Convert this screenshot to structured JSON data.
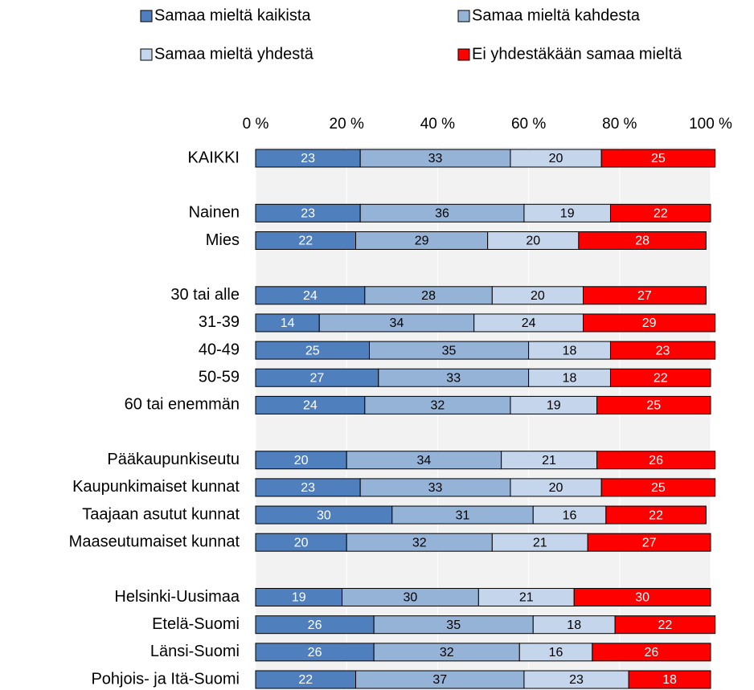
{
  "chart_data": {
    "type": "stacked_barh",
    "categories": [
      "KAIKKI",
      null,
      "Nainen",
      "Mies",
      null,
      "30 tai alle",
      "31-39",
      "40-49",
      "50-59",
      "60 tai enemmän",
      null,
      "Pääkaupunkiseutu",
      "Kaupunkimaiset kunnat",
      "Taajaan asutut kunnat",
      "Maaseutumaiset kunnat",
      null,
      "Helsinki-Uusimaa",
      "Etelä-Suomi",
      "Länsi-Suomi",
      "Pohjois- ja Itä-Suomi"
    ],
    "series": [
      {
        "name": "Samaa mieltä kaikista",
        "color": "#4f7fbd",
        "label_color": "#ffffff",
        "values": [
          23,
          null,
          23,
          22,
          null,
          24,
          14,
          25,
          27,
          24,
          null,
          20,
          23,
          30,
          20,
          null,
          19,
          26,
          26,
          22
        ]
      },
      {
        "name": "Samaa mieltä kahdesta",
        "color": "#95b3d7",
        "label_color": "#000000",
        "values": [
          33,
          null,
          36,
          29,
          null,
          28,
          34,
          35,
          33,
          32,
          null,
          34,
          33,
          31,
          32,
          null,
          30,
          35,
          32,
          37
        ]
      },
      {
        "name": "Samaa mieltä yhdestä",
        "color": "#c5d6ec",
        "label_color": "#000000",
        "values": [
          20,
          null,
          19,
          20,
          null,
          20,
          24,
          18,
          18,
          19,
          null,
          21,
          20,
          16,
          21,
          null,
          21,
          18,
          16,
          23
        ]
      },
      {
        "name": "Ei yhdestäkään samaa mieltä",
        "color": "#ff0000",
        "label_color": "#ffffff",
        "values": [
          25,
          null,
          22,
          28,
          null,
          27,
          29,
          23,
          22,
          25,
          null,
          26,
          25,
          22,
          27,
          null,
          30,
          22,
          26,
          18
        ]
      }
    ],
    "xlim": [
      0,
      100
    ],
    "xticks": [
      {
        "value": 0,
        "label": "0 %"
      },
      {
        "value": 20,
        "label": "20 %"
      },
      {
        "value": 40,
        "label": "40 %"
      },
      {
        "value": 60,
        "label": "60 %"
      },
      {
        "value": 80,
        "label": "80 %"
      },
      {
        "value": 100,
        "label": "100 %"
      }
    ],
    "grid": true
  }
}
